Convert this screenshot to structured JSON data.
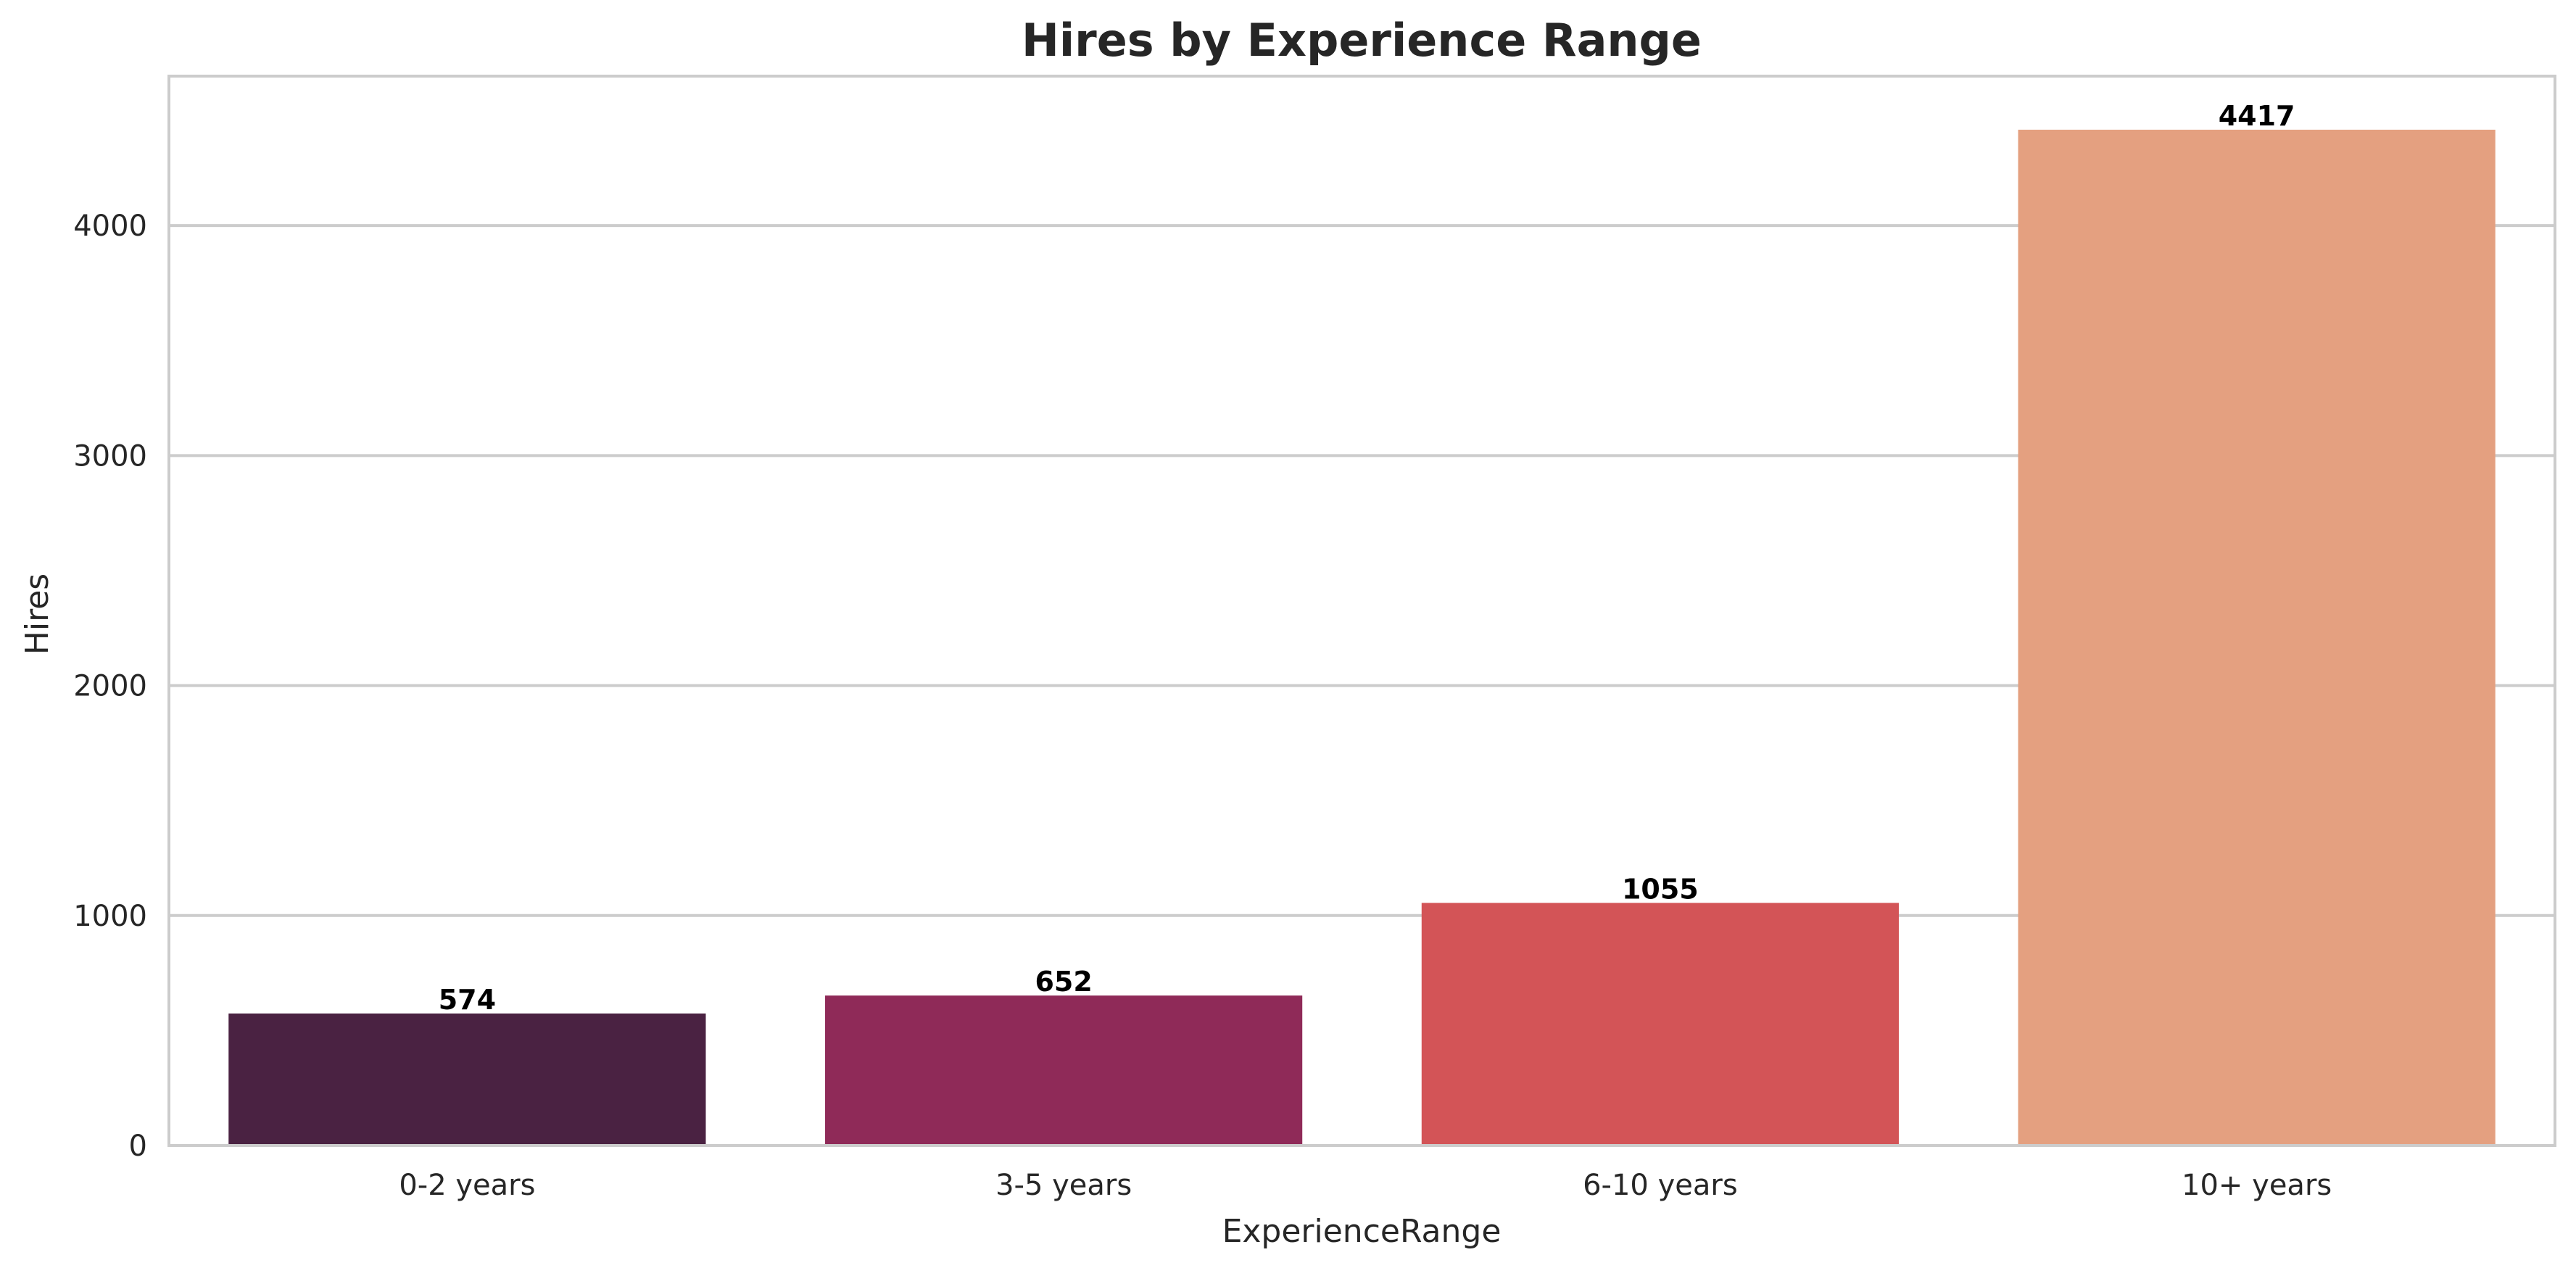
{
  "chart_data": {
    "type": "bar",
    "title": "Hires by Experience Range",
    "xlabel": "ExperienceRange",
    "ylabel": "Hires",
    "categories": [
      "0-2 years",
      "3-5 years",
      "6-10 years",
      "10+ years"
    ],
    "values": [
      574,
      652,
      1055,
      4417
    ],
    "data_labels": [
      "574",
      "652",
      "1055",
      "4417"
    ],
    "colors": [
      "#4a2242",
      "#8f2a58",
      "#d35457",
      "#e4a080"
    ],
    "ylim": [
      0,
      4650
    ],
    "yticks": [
      0,
      1000,
      2000,
      3000,
      4000
    ],
    "ytick_labels": [
      "0",
      "1000",
      "2000",
      "3000",
      "4000"
    ],
    "grid": "horizontal",
    "legend": "none"
  },
  "style": {
    "grid_color": "#cccccc",
    "frame_color": "#cccccc",
    "text_color": "#262626"
  }
}
